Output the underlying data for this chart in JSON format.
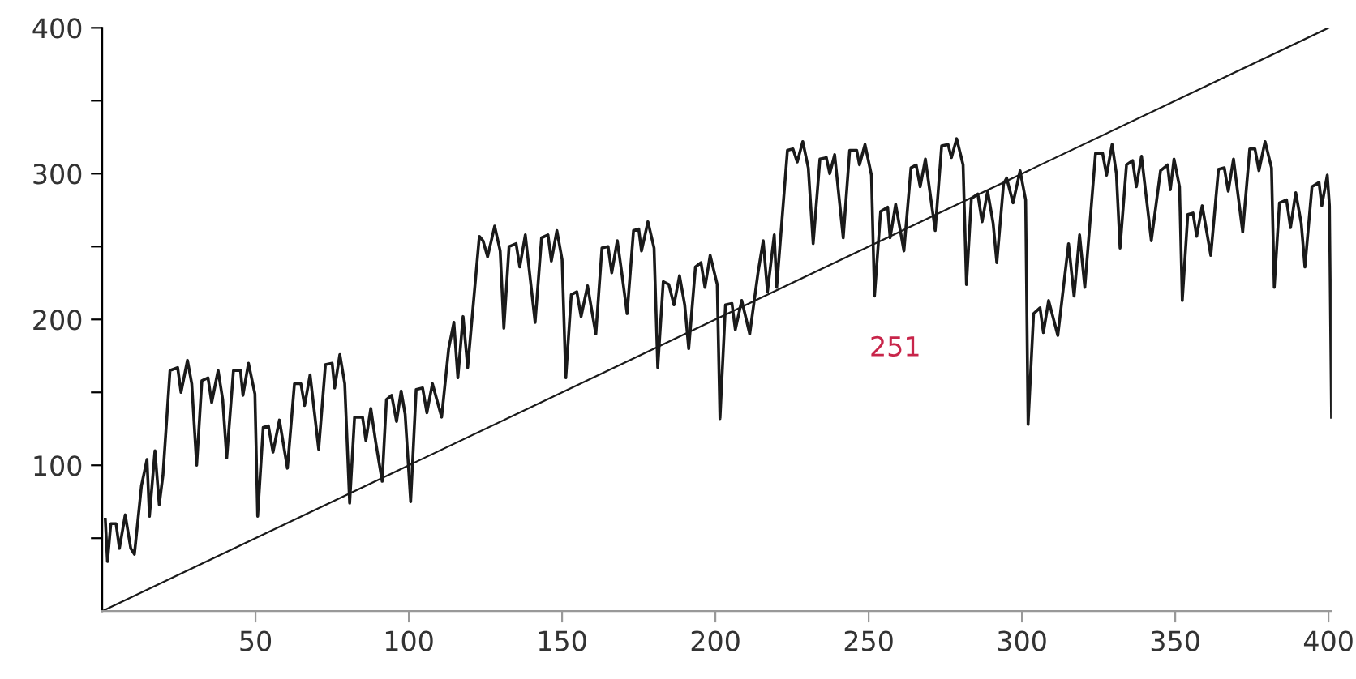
{
  "chart_data": {
    "type": "line",
    "xlim": [
      0,
      401
    ],
    "ylim": [
      0,
      400
    ],
    "xticks": [
      50,
      100,
      150,
      200,
      250,
      300,
      350,
      400
    ],
    "yticks": [
      {
        "value": 50,
        "label": null
      },
      100,
      {
        "value": 150,
        "label": null
      },
      200,
      {
        "value": 250,
        "label": null
      },
      300,
      {
        "value": 350,
        "label": null
      },
      400
    ],
    "grid": false,
    "legend": false,
    "marker": "none",
    "line_style": "solid",
    "annotations": [
      "251"
    ],
    "series": [
      {
        "color": "#1a1a1a",
        "x": [
          1,
          1.7,
          2.8,
          4.5,
          5.6,
          7.5,
          9.3,
          10.5,
          12.8,
          14.6,
          15.4,
          17.2,
          18.6,
          19.8,
          22.1,
          24.6,
          25.7,
          27.8,
          29.2,
          30.8,
          32.5,
          34.5,
          35.7,
          37.8,
          39.3,
          40.6,
          42.8,
          45.1,
          45.9,
          47.7,
          49.8,
          50.7,
          52.5,
          54.2,
          55.7,
          57.8,
          60.4,
          62.7,
          64.8,
          66,
          67.8,
          70.6,
          72.8,
          75,
          75.8,
          77.5,
          79.1,
          80.7,
          82.3,
          84.9,
          86,
          87.6,
          89.2,
          91.3,
          92.7,
          94.4,
          96,
          97.5,
          98.8,
          100.6,
          102.4,
          104.5,
          105.9,
          107.7,
          110.7,
          113,
          114.7,
          116,
          117.7,
          119.2,
          123,
          124.2,
          125.7,
          128,
          129.8,
          131,
          132.7,
          135,
          136.2,
          138,
          141.2,
          143.3,
          145.4,
          146.5,
          148.3,
          150,
          151.2,
          153,
          154.8,
          156.2,
          158.3,
          161,
          163,
          165,
          166.2,
          168,
          169.4,
          171.2,
          173.3,
          175,
          175.9,
          178,
          180,
          181.2,
          183,
          184.8,
          186.5,
          188.3,
          190,
          191.3,
          193.5,
          195.3,
          196.6,
          198.3,
          200.6,
          201.5,
          203.3,
          205.4,
          206.5,
          208.6,
          211.2,
          213.9,
          215.6,
          217,
          219.2,
          220,
          223.5,
          225.3,
          226.7,
          228.5,
          230.3,
          231.9,
          234.1,
          236.2,
          237.3,
          238.9,
          241.7,
          243.8,
          246.1,
          247,
          248.8,
          250.9,
          251.9,
          253.9,
          256.2,
          257,
          258.8,
          261.5,
          263.8,
          265.5,
          266.8,
          268.5,
          271.7,
          273.8,
          275.9,
          277,
          278.7,
          280.8,
          281.9,
          283.5,
          285.6,
          287,
          288.8,
          290.6,
          291.8,
          294,
          295,
          297.1,
          299.4,
          301.2,
          302,
          303.8,
          305.9,
          307,
          308.7,
          311.7,
          315.2,
          317,
          318.8,
          320.5,
          324,
          326.3,
          327.6,
          329.4,
          330.8,
          332,
          334.1,
          336.1,
          337.3,
          339,
          342.2,
          345.2,
          347.5,
          348.4,
          349.6,
          351.4,
          352.3,
          354.1,
          355.8,
          357,
          358.8,
          361.6,
          364.1,
          366,
          367.3,
          369,
          372,
          374.3,
          376,
          377.3,
          379.3,
          381.4,
          382.3,
          384,
          386.3,
          387.6,
          389.3,
          391.1,
          392.3,
          394.6,
          396.9,
          397.8,
          399.6,
          400.3,
          401
        ],
        "values": [
          63,
          34,
          60,
          60,
          43,
          66,
          43,
          39,
          86,
          104,
          65,
          110,
          73,
          93,
          165,
          167,
          150,
          172,
          156,
          100,
          158,
          160,
          143,
          165,
          145,
          105,
          165,
          165,
          148,
          170,
          149,
          65,
          126,
          127,
          109,
          131,
          98,
          156,
          156,
          141,
          162,
          111,
          169,
          170,
          153,
          176,
          156,
          74,
          133,
          133,
          117,
          139,
          116,
          89,
          145,
          148,
          130,
          151,
          135,
          75,
          152,
          153,
          136,
          156,
          133,
          180,
          198,
          160,
          202,
          167,
          257,
          254,
          243,
          264,
          247,
          194,
          250,
          252,
          236,
          258,
          198,
          256,
          258,
          240,
          261,
          241,
          160,
          217,
          219,
          202,
          223,
          190,
          249,
          250,
          232,
          254,
          233,
          204,
          261,
          262,
          247,
          267,
          249,
          167,
          226,
          224,
          210,
          230,
          210,
          180,
          236,
          239,
          222,
          244,
          224,
          132,
          210,
          211,
          193,
          213,
          190,
          232,
          254,
          219,
          258,
          222,
          316,
          317,
          308,
          322,
          304,
          252,
          310,
          311,
          300,
          313,
          256,
          316,
          316,
          306,
          320,
          299,
          216,
          274,
          277,
          256,
          279,
          247,
          304,
          306,
          291,
          310,
          261,
          319,
          320,
          311,
          324,
          306,
          224,
          283,
          286,
          267,
          288,
          266,
          239,
          293,
          297,
          280,
          302,
          282,
          128,
          204,
          208,
          191,
          213,
          189,
          252,
          216,
          258,
          222,
          314,
          314,
          299,
          320,
          300,
          249,
          306,
          309,
          291,
          312,
          254,
          302,
          306,
          289,
          310,
          291,
          213,
          272,
          273,
          257,
          278,
          244,
          303,
          304,
          288,
          310,
          260,
          317,
          317,
          302,
          322,
          304,
          222,
          280,
          282,
          263,
          287,
          266,
          236,
          291,
          294,
          278,
          299,
          278,
          133
        ]
      },
      {
        "color": "#1a1a1a",
        "x": [
          0,
          400
        ],
        "values": [
          0,
          400
        ]
      }
    ]
  }
}
